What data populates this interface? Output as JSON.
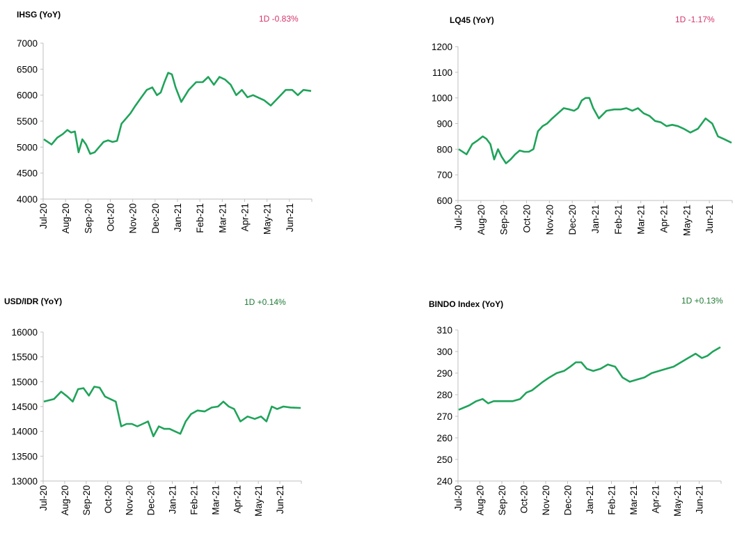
{
  "colors": {
    "line": "#1fa35a",
    "negative": "#d6336c",
    "positive": "#1f7a34",
    "axis": "#bfbfbf"
  },
  "charts": [
    {
      "title": "IHSG (YoY)",
      "change": "1D -0.83%",
      "change_sign": "negative"
    },
    {
      "title": "LQ45 (YoY)",
      "change": "1D -1.17%",
      "change_sign": "negative"
    },
    {
      "title": "USD/IDR  (YoY)",
      "change": "1D +0.14%",
      "change_sign": "positive"
    },
    {
      "title": "BINDO Index (YoY)",
      "change": "1D +0.13%",
      "change_sign": "positive"
    }
  ],
  "chart_data": [
    {
      "type": "line",
      "title": "IHSG (YoY)",
      "xlabel": "",
      "ylabel": "",
      "ylim": [
        4000,
        7000
      ],
      "yticks": [
        "4000",
        "4500",
        "5000",
        "5500",
        "6000",
        "6500",
        "7000"
      ],
      "xticks": [
        "Jul-20",
        "Aug-20",
        "Sep-20",
        "Oct-20",
        "Nov-20",
        "Dec-20",
        "Jan-21",
        "Feb-21",
        "Mar-21",
        "Apr-21",
        "May-21",
        "Jun-21"
      ],
      "x": [
        "Jul-20",
        "Jul-20",
        "Jul-20",
        "Jul-20",
        "Aug-20",
        "Aug-20",
        "Aug-20",
        "Aug-20",
        "Aug-20",
        "Aug-20",
        "Sep-20",
        "Sep-20",
        "Sep-20",
        "Sep-20",
        "Sep-20",
        "Oct-20",
        "Oct-20",
        "Oct-20",
        "Oct-20",
        "Oct-20",
        "Nov-20",
        "Nov-20",
        "Nov-20",
        "Nov-20",
        "Dec-20",
        "Dec-20",
        "Dec-20",
        "Dec-20",
        "Dec-20",
        "Dec-20",
        "Jan-21",
        "Jan-21",
        "Jan-21",
        "Feb-21",
        "Feb-21",
        "Feb-21",
        "Feb-21",
        "Mar-21",
        "Mar-21",
        "Mar-21",
        "Mar-21",
        "Apr-21",
        "Apr-21",
        "Apr-21",
        "Apr-21",
        "May-21",
        "May-21",
        "May-21",
        "Jun-21",
        "Jun-21",
        "Jun-21",
        "Jun-21"
      ],
      "values": [
        5150,
        5050,
        5180,
        5250,
        5330,
        5280,
        5300,
        4900,
        5150,
        5050,
        4870,
        4900,
        5000,
        5100,
        5130,
        5100,
        5120,
        5450,
        5550,
        5650,
        5800,
        5950,
        6100,
        6150,
        6000,
        6050,
        6250,
        6430,
        6400,
        6150,
        5870,
        6100,
        6250,
        6250,
        6350,
        6200,
        6350,
        6300,
        6200,
        6000,
        6100,
        5960,
        6000,
        5950,
        5900,
        5800,
        5950,
        6100,
        6100,
        6000,
        6100,
        6080
      ]
    },
    {
      "type": "line",
      "title": "LQ45 (YoY)",
      "xlabel": "",
      "ylabel": "",
      "ylim": [
        600,
        1200
      ],
      "yticks": [
        "600",
        "700",
        "800",
        "900",
        "1000",
        "1100",
        "1200"
      ],
      "xticks": [
        "Jul-20",
        "Aug-20",
        "Sep-20",
        "Oct-20",
        "Nov-20",
        "Dec-20",
        "Jan-21",
        "Feb-21",
        "Mar-21",
        "Apr-21",
        "May-21",
        "Jun-21"
      ],
      "x": [
        "Jul-20",
        "Jul-20",
        "Jul-20",
        "Jul-20",
        "Aug-20",
        "Aug-20",
        "Aug-20",
        "Aug-20",
        "Aug-20",
        "Aug-20",
        "Sep-20",
        "Sep-20",
        "Sep-20",
        "Sep-20",
        "Sep-20",
        "Oct-20",
        "Oct-20",
        "Oct-20",
        "Oct-20",
        "Oct-20",
        "Nov-20",
        "Nov-20",
        "Nov-20",
        "Nov-20",
        "Dec-20",
        "Dec-20",
        "Dec-20",
        "Dec-20",
        "Dec-20",
        "Dec-20",
        "Jan-21",
        "Jan-21",
        "Jan-21",
        "Feb-21",
        "Feb-21",
        "Feb-21",
        "Feb-21",
        "Mar-21",
        "Mar-21",
        "Mar-21",
        "Mar-21",
        "Apr-21",
        "Apr-21",
        "Apr-21",
        "Apr-21",
        "May-21",
        "May-21",
        "May-21",
        "Jun-21",
        "Jun-21",
        "Jun-21",
        "Jun-21"
      ],
      "values": [
        800,
        780,
        820,
        835,
        850,
        840,
        820,
        760,
        800,
        770,
        745,
        760,
        780,
        795,
        790,
        790,
        800,
        870,
        890,
        900,
        920,
        940,
        960,
        955,
        950,
        960,
        990,
        1000,
        1000,
        960,
        920,
        950,
        955,
        955,
        960,
        950,
        960,
        940,
        930,
        910,
        905,
        890,
        895,
        890,
        880,
        865,
        880,
        920,
        900,
        850,
        840,
        825
      ]
    },
    {
      "type": "line",
      "title": "USD/IDR  (YoY)",
      "xlabel": "",
      "ylabel": "",
      "ylim": [
        13000,
        16000
      ],
      "yticks": [
        "13000",
        "13500",
        "14000",
        "14500",
        "15000",
        "15500",
        "16000"
      ],
      "xticks": [
        "Jul-20",
        "Aug-20",
        "Sep-20",
        "Oct-20",
        "Nov-20",
        "Dec-20",
        "Jan-21",
        "Feb-21",
        "Mar-21",
        "Apr-21",
        "May-21",
        "Jun-21"
      ],
      "x": [
        "Jul-20",
        "Jul-20",
        "Jul-20",
        "Aug-20",
        "Aug-20",
        "Aug-20",
        "Aug-20",
        "Sep-20",
        "Sep-20",
        "Sep-20",
        "Sep-20",
        "Oct-20",
        "Oct-20",
        "Oct-20",
        "Oct-20",
        "Nov-20",
        "Nov-20",
        "Nov-20",
        "Nov-20",
        "Dec-20",
        "Dec-20",
        "Dec-20",
        "Dec-20",
        "Jan-21",
        "Jan-21",
        "Jan-21",
        "Jan-21",
        "Feb-21",
        "Feb-21",
        "Feb-21",
        "Mar-21",
        "Mar-21",
        "Mar-21",
        "Mar-21",
        "Apr-21",
        "Apr-21",
        "Apr-21",
        "May-21",
        "May-21",
        "May-21",
        "May-21",
        "Jun-21",
        "Jun-21",
        "Jun-21"
      ],
      "values": [
        14600,
        14650,
        14800,
        14700,
        14600,
        14850,
        14870,
        14720,
        14900,
        14880,
        14700,
        14650,
        14600,
        14100,
        14150,
        14150,
        14100,
        14150,
        14200,
        13900,
        14100,
        14050,
        14050,
        14000,
        13950,
        14200,
        14350,
        14420,
        14400,
        14480,
        14500,
        14600,
        14500,
        14450,
        14200,
        14300,
        14250,
        14300,
        14200,
        14500,
        14450,
        14500,
        14480,
        14470
      ]
    },
    {
      "type": "line",
      "title": "BINDO Index (YoY)",
      "xlabel": "",
      "ylabel": "",
      "ylim": [
        240,
        310
      ],
      "yticks": [
        "240",
        "250",
        "260",
        "270",
        "280",
        "290",
        "300",
        "310"
      ],
      "xticks": [
        "Jul-20",
        "Aug-20",
        "Sep-20",
        "Oct-20",
        "Nov-20",
        "Dec-20",
        "Jan-21",
        "Feb-21",
        "Mar-21",
        "Apr-21",
        "May-21",
        "Jun-21"
      ],
      "x": [
        "Jul-20",
        "Jul-20",
        "Jul-20",
        "Aug-20",
        "Aug-20",
        "Aug-20",
        "Aug-20",
        "Sep-20",
        "Sep-20",
        "Sep-20",
        "Oct-20",
        "Oct-20",
        "Oct-20",
        "Oct-20",
        "Nov-20",
        "Nov-20",
        "Nov-20",
        "Dec-20",
        "Dec-20",
        "Dec-20",
        "Dec-20",
        "Jan-21",
        "Jan-21",
        "Jan-21",
        "Feb-21",
        "Feb-21",
        "Feb-21",
        "Mar-21",
        "Mar-21",
        "Mar-21",
        "Apr-21",
        "Apr-21",
        "Apr-21",
        "May-21",
        "May-21",
        "May-21",
        "Jun-21",
        "Jun-21",
        "Jun-21",
        "Jun-21"
      ],
      "values": [
        273,
        275,
        277,
        278,
        276,
        277,
        277,
        277,
        277,
        278,
        281,
        282,
        284,
        286,
        288,
        290,
        291,
        293,
        295,
        295,
        292,
        291,
        292,
        294,
        293,
        288,
        286,
        287,
        288,
        290,
        291,
        292,
        293,
        295,
        297,
        299,
        297,
        298,
        300,
        302
      ]
    }
  ]
}
